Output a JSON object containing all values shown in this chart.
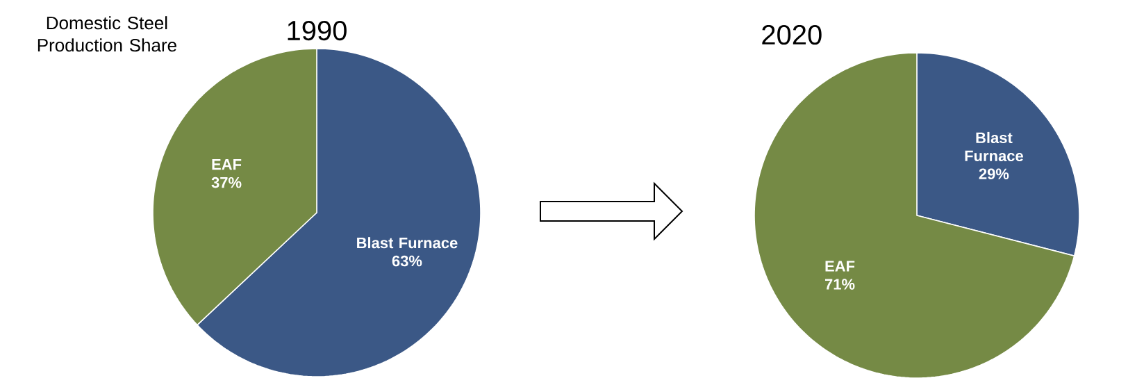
{
  "chart_data": [
    {
      "type": "pie",
      "title": "1990",
      "categories": [
        "Blast Furnace",
        "EAF"
      ],
      "values": [
        63,
        37
      ],
      "colors": [
        "#3b5886",
        "#758a45"
      ],
      "value_labels": [
        "63%",
        "37%"
      ],
      "annotations": [
        "Domestic Steel Production Share"
      ]
    },
    {
      "type": "pie",
      "title": "2020",
      "categories": [
        "Blast Furnace",
        "EAF"
      ],
      "values": [
        29,
        71
      ],
      "colors": [
        "#3b5886",
        "#758a45"
      ],
      "value_labels": [
        "29%",
        "71%"
      ]
    }
  ]
}
